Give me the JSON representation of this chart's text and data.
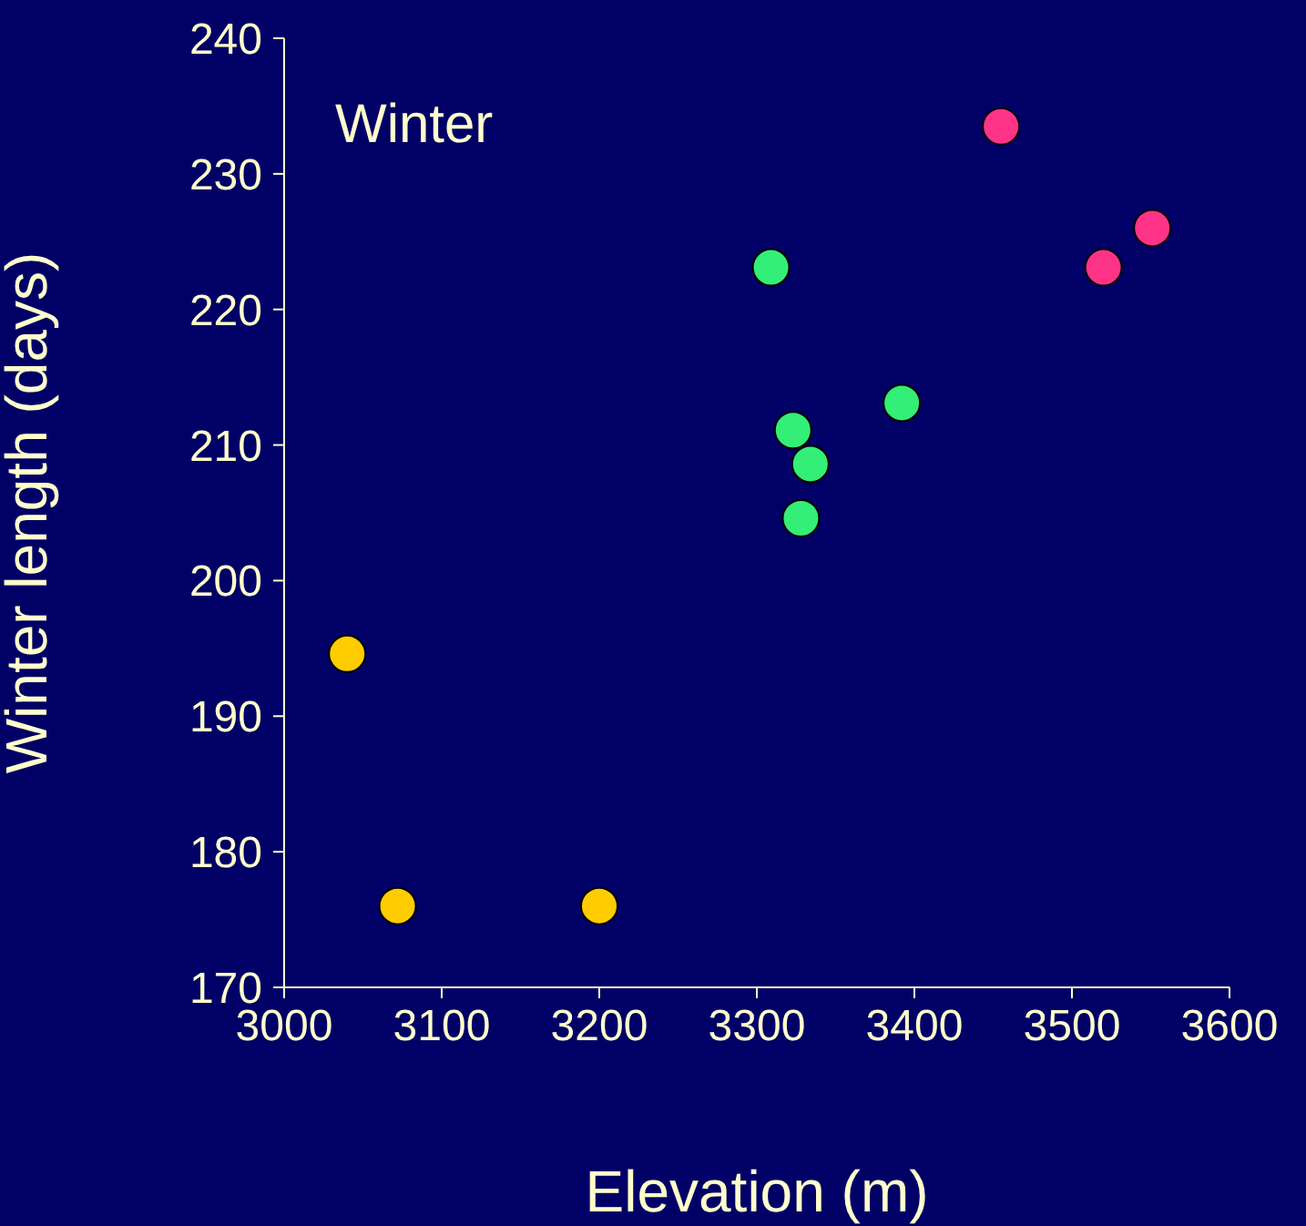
{
  "chart_data": {
    "type": "scatter",
    "xlabel": "Elevation (m)",
    "ylabel": "Winter length (days)",
    "annotations": [
      "Winter"
    ],
    "xlim": [
      3000,
      3600
    ],
    "xticks": [
      3000,
      3100,
      3200,
      3300,
      3400,
      3500,
      3600
    ],
    "ylim": [
      170,
      240
    ],
    "yticks": [
      170,
      180,
      190,
      200,
      210,
      220,
      230,
      240
    ],
    "grid": false,
    "legend": false,
    "marker": "circle",
    "series": [
      {
        "color": "#ffcc00",
        "x": [
          3040,
          3072,
          3200
        ],
        "values": [
          194.6,
          176,
          176
        ]
      },
      {
        "color": "#33ee77",
        "x": [
          3309,
          3323,
          3334,
          3328,
          3392
        ],
        "values": [
          223.1,
          211.1,
          208.6,
          204.6,
          213.1
        ]
      },
      {
        "color": "#ff3388",
        "x": [
          3455,
          3520,
          3551
        ],
        "values": [
          233.5,
          223.1,
          226
        ]
      }
    ]
  }
}
